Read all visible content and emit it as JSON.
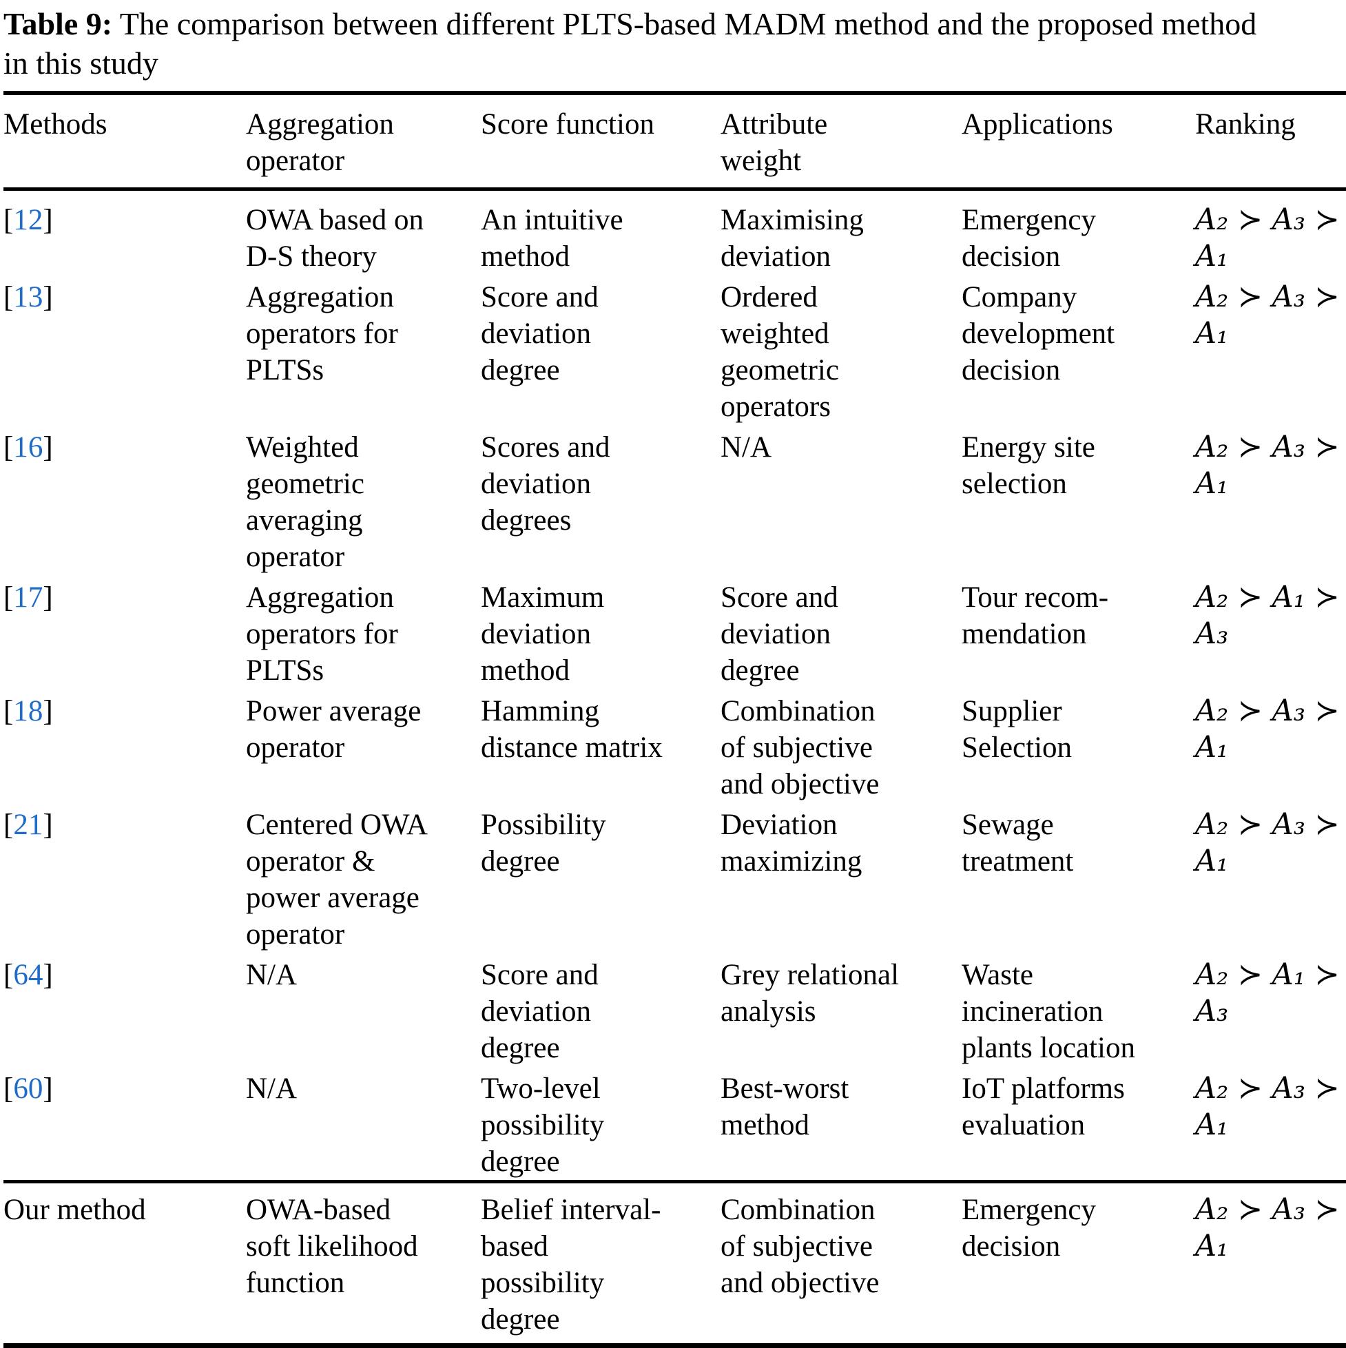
{
  "caption": {
    "label": "Table 9:",
    "text": "The comparison between different PLTS-based MADM method and the proposed method\nin this study"
  },
  "table": {
    "columns": [
      "Methods",
      "Aggregation operator",
      "Score function",
      "Attribute weight",
      "Applications",
      "Ranking"
    ],
    "bracket_open": "[",
    "bracket_close": "]",
    "citation_color": "#1e6bc8",
    "rows": [
      {
        "ref": "12",
        "aggregation": "OWA based on D-S theory",
        "score": "An intuitive method",
        "weight": "Maximising deviation",
        "application": "Emergency decision",
        "ranking": "A₂ ≻ A₃ ≻\nA₁"
      },
      {
        "ref": "13",
        "aggregation": "Aggregation operators for PLTSs",
        "score": "Score and deviation degree",
        "weight": "Ordered weighted geometric operators",
        "application": "Company development decision",
        "ranking": "A₂ ≻ A₃ ≻\nA₁"
      },
      {
        "ref": "16",
        "aggregation": "Weighted geometric averaging operator",
        "score": "Scores and deviation degrees",
        "weight": "N/A",
        "application": "Energy site selection",
        "ranking": "A₂ ≻ A₃ ≻\nA₁"
      },
      {
        "ref": "17",
        "aggregation": "Aggregation operators for PLTSs",
        "score": "Maximum deviation method",
        "weight": "Score and deviation degree",
        "application": "Tour recom­mendation",
        "ranking": "A₂ ≻ A₁ ≻\nA₃"
      },
      {
        "ref": "18",
        "aggregation": "Power average operator",
        "score": "Hamming distance matrix",
        "weight": "Combination of subjective and objective",
        "application": "Supplier Selection",
        "ranking": "A₂ ≻ A₃ ≻\nA₁"
      },
      {
        "ref": "21",
        "aggregation": "Centered OWA operator & power average operator",
        "score": "Possibility degree",
        "weight": "Deviation maximizing",
        "application": "Sewage treatment",
        "ranking": "A₂ ≻ A₃ ≻\nA₁"
      },
      {
        "ref": "64",
        "aggregation": "N/A",
        "score": "Score and deviation degree",
        "weight": "Grey relational analysis",
        "application": "Waste incineration plants location",
        "ranking": "A₂ ≻ A₁ ≻\nA₃"
      },
      {
        "ref": "60",
        "aggregation": "N/A",
        "score": "Two-level possibility degree",
        "weight": "Best-worst method",
        "application": "IoT platforms evaluation",
        "ranking": "A₂ ≻ A₃ ≻\nA₁"
      },
      {
        "method": "Our method",
        "aggregation": "OWA-based soft likelihood function",
        "score": "Belief interval-based possibility degree",
        "weight": "Combination of subjective and objective",
        "application": "Emergency decision",
        "ranking": "A₂ ≻ A₃ ≻\nA₁"
      }
    ]
  }
}
